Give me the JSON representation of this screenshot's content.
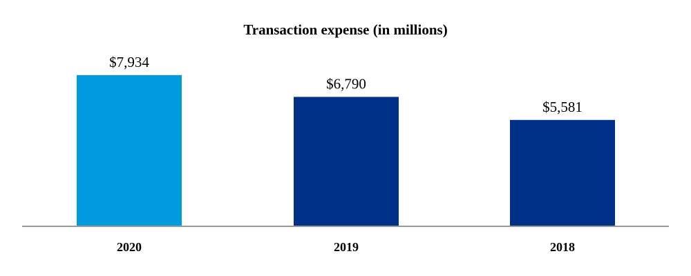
{
  "chart_data": {
    "type": "bar",
    "title": "Transaction expense (in millions)",
    "categories": [
      "2020",
      "2019",
      "2018"
    ],
    "values": [
      7934,
      6790,
      5581
    ],
    "value_labels": [
      "$7,934",
      "$6,790",
      "$5,581"
    ],
    "xlabel": "",
    "ylabel": "",
    "ylim": [
      0,
      8000
    ],
    "grid": false,
    "legend": "none",
    "colors": [
      "#009ade",
      "#003087",
      "#003087"
    ],
    "axis_color": "#9a9a9a"
  }
}
